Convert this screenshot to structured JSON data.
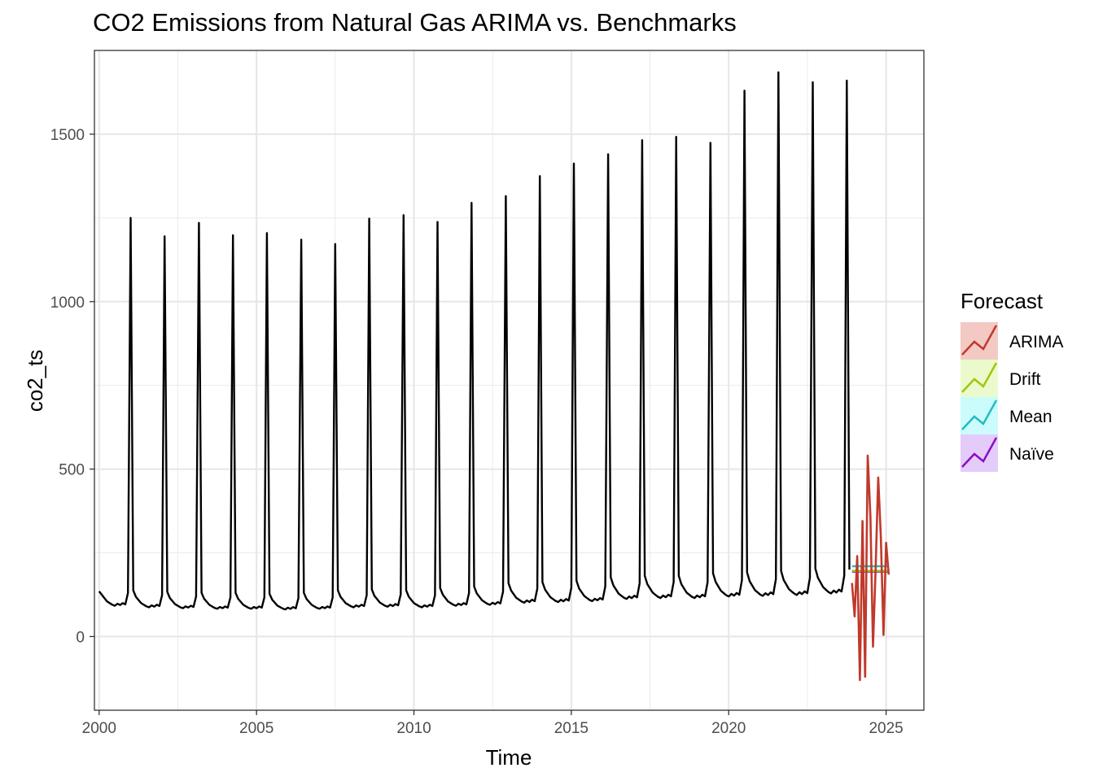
{
  "chart_data": {
    "type": "line",
    "title": "CO2 Emissions from Natural Gas ARIMA vs. Benchmarks",
    "xlabel": "Time",
    "ylabel": "co2_ts",
    "xlim": [
      1999.85,
      2026.2
    ],
    "ylim": [
      -220,
      1750
    ],
    "x_ticks": [
      2000,
      2005,
      2010,
      2015,
      2020,
      2025
    ],
    "x_tick_labels": [
      "2000",
      "2005",
      "2010",
      "2015",
      "2020",
      "2025"
    ],
    "y_ticks": [
      0,
      500,
      1000,
      1500
    ],
    "y_tick_labels": [
      "0",
      "500",
      "1000",
      "1500"
    ],
    "grid": true,
    "legend": {
      "title": "Forecast",
      "position": "right",
      "entries": [
        {
          "name": "ARIMA",
          "color": "#c0392b",
          "fill": "#f4c9c4"
        },
        {
          "name": "Drift",
          "color": "#a3c40e",
          "fill": "#eafacc"
        },
        {
          "name": "Mean",
          "color": "#20bdc4",
          "fill": "#ccfbfc"
        },
        {
          "name": "Naïve",
          "color": "#8b0bc8",
          "fill": "#e4ccfa"
        }
      ]
    },
    "history": {
      "color": "#000000",
      "start": 2000.0,
      "frequency": 12,
      "annual_peaks": [
        1250,
        1195,
        1235,
        1198,
        1205,
        1185,
        1172,
        1248,
        1258,
        1238,
        1295,
        1315,
        1375,
        1412,
        1440,
        1482,
        1492,
        1474,
        1630,
        1685,
        1655,
        1660
      ],
      "peak_times": [
        2001.0,
        2002.08,
        2003.17,
        2004.25,
        2005.33,
        2006.42,
        2007.5,
        2008.58,
        2009.67,
        2010.75,
        2011.83,
        2012.92,
        2014.0,
        2015.08,
        2016.17,
        2017.25,
        2018.33,
        2019.42,
        2020.5,
        2021.58,
        2022.67,
        2023.75
      ],
      "baseline_by_year": [
        100,
        95,
        92,
        90,
        90,
        88,
        90,
        95,
        97,
        95,
        100,
        103,
        110,
        112,
        115,
        122,
        125,
        125,
        130,
        132,
        135,
        140
      ]
    },
    "series": [
      {
        "name": "ARIMA",
        "color": "#c0392b",
        "x": [
          2023.917,
          2024.0,
          2024.083,
          2024.167,
          2024.25,
          2024.333,
          2024.417,
          2024.5,
          2024.583,
          2024.667,
          2024.75,
          2024.833,
          2024.917,
          2025.0,
          2025.083
        ],
        "y": [
          160,
          60,
          240,
          -130,
          345,
          -120,
          540,
          360,
          -30,
          200,
          475,
          300,
          5,
          280,
          185
        ]
      },
      {
        "name": "Drift",
        "color": "#a3c40e",
        "x": [
          2023.917,
          2025.083
        ],
        "y": [
          196,
          196
        ]
      },
      {
        "name": "Mean",
        "color": "#20bdc4",
        "x": [
          2023.917,
          2025.083
        ],
        "y": [
          210,
          210
        ]
      },
      {
        "name": "Naïve",
        "color": "#8b0bc8",
        "x": [
          2023.917,
          2025.083
        ],
        "y": [
          194,
          194
        ]
      }
    ]
  }
}
